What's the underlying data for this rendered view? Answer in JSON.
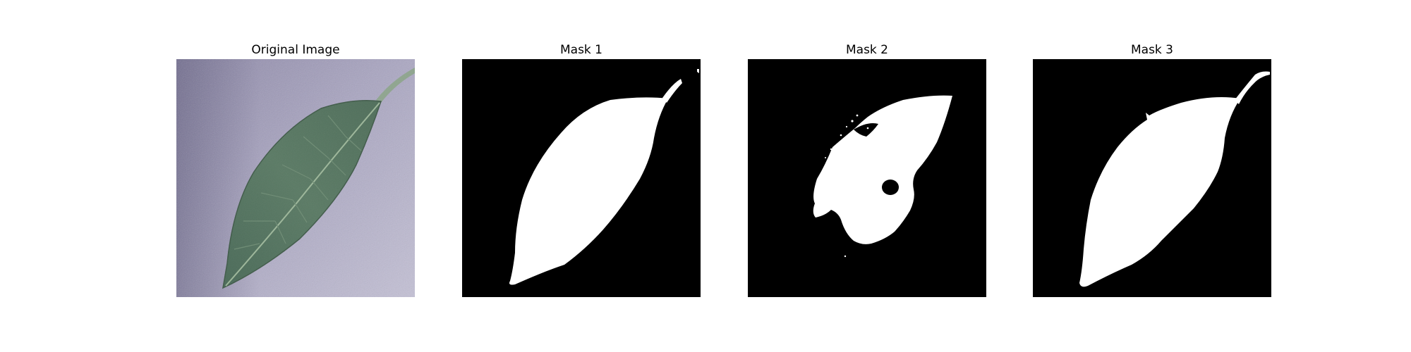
{
  "figure": {
    "panels": [
      {
        "title": "Original Image",
        "kind": "photo"
      },
      {
        "title": "Mask 1",
        "kind": "mask"
      },
      {
        "title": "Mask 2",
        "kind": "mask"
      },
      {
        "title": "Mask 3",
        "kind": "mask"
      }
    ]
  },
  "colors": {
    "mask_background": "#000000",
    "mask_foreground": "#ffffff",
    "photo_background": "#aaa6c2",
    "leaf": "#546e5c"
  }
}
